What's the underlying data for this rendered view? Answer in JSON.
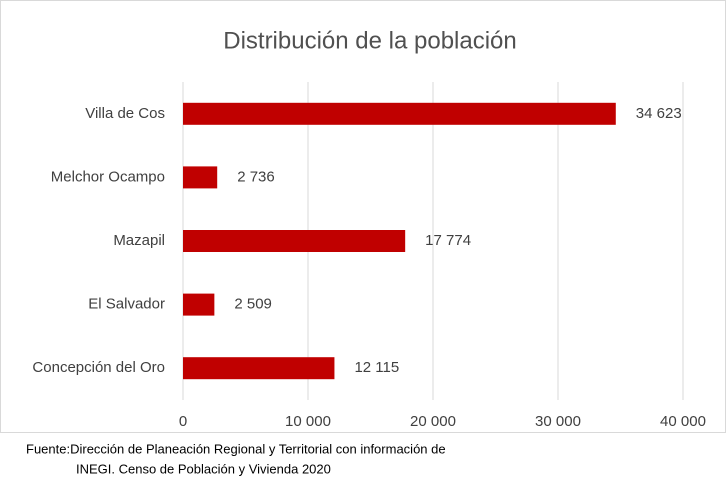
{
  "chart_data": {
    "type": "hbar",
    "title": "Distribución de la población",
    "categories": [
      "Villa de Cos",
      "Melchor Ocampo",
      "Mazapil",
      "El Salvador",
      "Concepción del Oro"
    ],
    "values": [
      34623,
      2736,
      17774,
      2509,
      12115
    ],
    "value_labels": [
      "34 623",
      "2 736",
      "17 774",
      "2 509",
      "12 115"
    ],
    "color": "#c00000",
    "xlim": [
      0,
      40000
    ],
    "xticks": [
      0,
      {
        "value": 10000,
        "label": "10 000"
      },
      {
        "value": 20000,
        "label": "20 000"
      },
      {
        "value": 30000,
        "label": "30 000"
      },
      {
        "value": 40000,
        "label": "40 000"
      }
    ],
    "grid": true,
    "source": [
      "Fuente:Dirección de Planeación Regional y Territorial con información de",
      "INEGI. Censo de Población y Vivienda 2020"
    ]
  }
}
